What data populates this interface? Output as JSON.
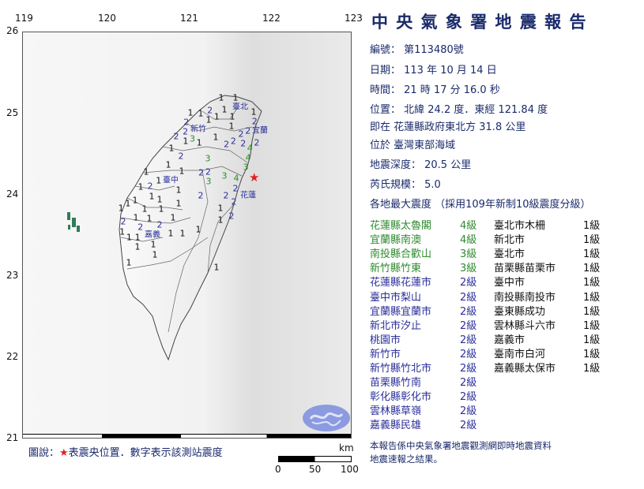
{
  "report": {
    "title": "中 央 氣 象 署 地 震 報 告",
    "number": "編號： 第113480號",
    "date": "日期： 113 年 10 月 14 日",
    "time": "時間： 21 時 17 分 16.0 秒",
    "position": "位置： 北緯 24.2 度．東經 121.84 度",
    "relative": "即在 花蓮縣政府東北方 31.8 公里",
    "region": "位於 臺灣東部海域",
    "depth": "地震深度： 20.5 公里",
    "magnitude": "芮氏規模： 5.0",
    "intensity_header": "各地最大震度 （採用109年新制10級震度分級）",
    "intensities_left": [
      {
        "place": "花蓮縣太魯閣",
        "level": "4級",
        "grade": 4
      },
      {
        "place": "宜蘭縣南澳",
        "level": "4級",
        "grade": 4
      },
      {
        "place": "南投縣合歡山",
        "level": "3級",
        "grade": 3
      },
      {
        "place": "新竹縣竹東",
        "level": "3級",
        "grade": 3
      },
      {
        "place": "花蓮縣花蓮市",
        "level": "2級",
        "grade": 2
      },
      {
        "place": "臺中市梨山",
        "level": "2級",
        "grade": 2
      },
      {
        "place": "宜蘭縣宜蘭市",
        "level": "2級",
        "grade": 2
      },
      {
        "place": "新北市汐止",
        "level": "2級",
        "grade": 2
      },
      {
        "place": "桃園市",
        "level": "2級",
        "grade": 2
      },
      {
        "place": "新竹市",
        "level": "2級",
        "grade": 2
      },
      {
        "place": "新竹縣竹北市",
        "level": "2級",
        "grade": 2
      },
      {
        "place": "苗栗縣竹南",
        "level": "2級",
        "grade": 2
      },
      {
        "place": "彰化縣彰化市",
        "level": "2級",
        "grade": 2
      },
      {
        "place": "雲林縣草嶺",
        "level": "2級",
        "grade": 2
      },
      {
        "place": "嘉義縣民雄",
        "level": "2級",
        "grade": 2
      }
    ],
    "intensities_right": [
      {
        "place": "臺北市木柵",
        "level": "1級",
        "grade": 1
      },
      {
        "place": "新北市",
        "level": "1級",
        "grade": 1
      },
      {
        "place": "臺北市",
        "level": "1級",
        "grade": 1
      },
      {
        "place": "苗栗縣苗栗市",
        "level": "1級",
        "grade": 1
      },
      {
        "place": "臺中市",
        "level": "1級",
        "grade": 1
      },
      {
        "place": "南投縣南投市",
        "level": "1級",
        "grade": 1
      },
      {
        "place": "臺東縣成功",
        "level": "1級",
        "grade": 1
      },
      {
        "place": "雲林縣斗六市",
        "level": "1級",
        "grade": 1
      },
      {
        "place": "嘉義市",
        "level": "1級",
        "grade": 1
      },
      {
        "place": "臺南市白河",
        "level": "1級",
        "grade": 1
      },
      {
        "place": "嘉義縣太保市",
        "level": "1級",
        "grade": 1
      }
    ],
    "footer_line1": "本報告係中央氣象署地震觀測網即時地震資料",
    "footer_line2": "地震速報之結果。"
  },
  "colors": {
    "grade4": "#2e8b2e",
    "grade3": "#2e8b2e",
    "grade2": "#2b2f9a",
    "grade1": "#111111",
    "epicenter": "#e02020",
    "logo": "#8c9be0"
  },
  "map": {
    "lon_ticks": [
      "119",
      "120",
      "121",
      "122",
      "123"
    ],
    "lat_ticks": [
      "26",
      "25",
      "24",
      "23",
      "22",
      "21"
    ],
    "cities": [
      "臺北",
      "新竹",
      "宜蘭",
      "臺中",
      "花蓮",
      "嘉義"
    ],
    "station_intensities": [
      "1",
      "1",
      "2",
      "1",
      "1",
      "1",
      "1",
      "1",
      "1",
      "2",
      "2",
      "2",
      "3",
      "1",
      "1",
      "2",
      "2",
      "2",
      "2",
      "2",
      "2",
      "2",
      "1",
      "1",
      "1",
      "1",
      "2",
      "4",
      "3",
      "1",
      "1",
      "2",
      "2",
      "3",
      "3",
      "4",
      "1",
      "1",
      "1",
      "2",
      "1",
      "2",
      "2",
      "2",
      "1",
      "1",
      "1",
      "1",
      "1",
      "1",
      "2",
      "1",
      "2",
      "1",
      "1",
      "2",
      "1",
      "1",
      "1",
      "1",
      "2",
      "1",
      "1",
      "2",
      "1",
      "1",
      "1",
      "1",
      "1",
      "1",
      "1",
      "1",
      "4",
      "1",
      "3"
    ],
    "epicenter_icon": "red-star-icon",
    "legend_prefix": "圖說：",
    "legend_star": "★",
    "legend_text": "表震央位置．數字表示該測站震度",
    "scale_unit": "km",
    "scale_labels": [
      "0",
      "50",
      "100"
    ],
    "logo_icon": "cwa-logo-icon"
  }
}
